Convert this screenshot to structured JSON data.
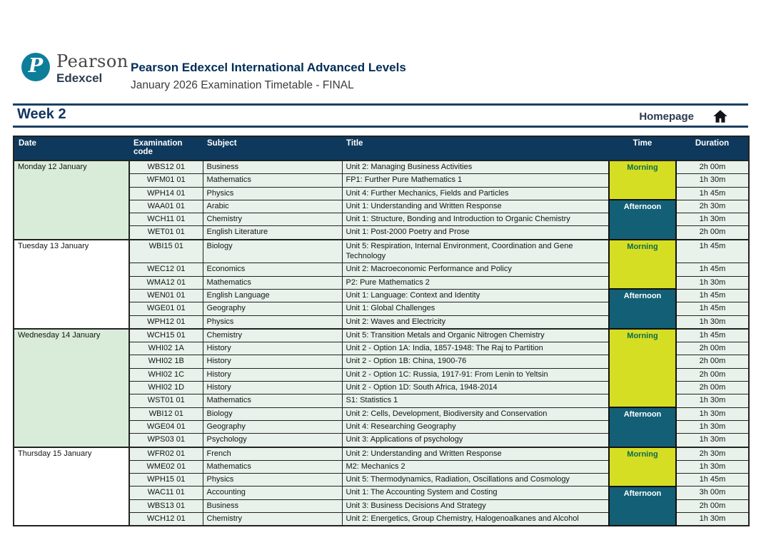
{
  "logo": {
    "circle_letter": "P",
    "brand": "Pearson",
    "sub_brand": "Edexcel"
  },
  "header": {
    "title": "Pearson Edexcel International Advanced Levels",
    "subtitle": "January 2026 Examination Timetable - FINAL"
  },
  "week_label": "Week 2",
  "homepage_label": "Homepage",
  "colors": {
    "header_navy": "#0f395c",
    "rule_navy": "#1c4061",
    "pearson_teal": "#0d7e9a",
    "morning_bg": "#d6de23",
    "morning_text": "#0c6b51",
    "afternoon_bg": "#135f76",
    "afternoon_text": "#ffffff",
    "row_bg": "#e8f2ea",
    "date_shaded_bg": "#d9ecd9"
  },
  "table": {
    "columns": [
      "Date",
      "Examination code",
      "Subject",
      "Title",
      "Time",
      "Duration"
    ],
    "days": [
      {
        "date": "Monday 12 January",
        "date_shaded": true,
        "sessions": [
          {
            "time": "Morning",
            "exams": [
              {
                "code": "WBS12 01",
                "subject": "Business",
                "title": "Unit 2: Managing Business Activities",
                "duration": "2h 00m"
              },
              {
                "code": "WFM01 01",
                "subject": "Mathematics",
                "title": "FP1: Further Pure Mathematics 1",
                "duration": "1h 30m"
              },
              {
                "code": "WPH14 01",
                "subject": "Physics",
                "title": "Unit 4: Further Mechanics, Fields and Particles",
                "duration": "1h 45m"
              }
            ]
          },
          {
            "time": "Afternoon",
            "exams": [
              {
                "code": "WAA01 01",
                "subject": "Arabic",
                "title": "Unit 1: Understanding and Written Response",
                "duration": "2h 30m"
              },
              {
                "code": "WCH11 01",
                "subject": "Chemistry",
                "title": "Unit 1: Structure, Bonding and Introduction to Organic Chemistry",
                "duration": "1h 30m"
              },
              {
                "code": "WET01 01",
                "subject": "English Literature",
                "title": "Unit 1: Post-2000 Poetry and Prose",
                "duration": "2h 00m"
              }
            ]
          }
        ]
      },
      {
        "date": "Tuesday 13 January",
        "date_shaded": false,
        "sessions": [
          {
            "time": "Morning",
            "exams": [
              {
                "code": "WBI15 01",
                "subject": "Biology",
                "title": "Unit 5: Respiration, Internal Environment, Coordination and Gene Technology",
                "duration": "1h 45m"
              },
              {
                "code": "WEC12 01",
                "subject": "Economics",
                "title": "Unit 2: Macroeconomic Performance and Policy",
                "duration": "1h 45m"
              },
              {
                "code": "WMA12 01",
                "subject": "Mathematics",
                "title": "P2: Pure Mathematics 2",
                "duration": "1h 30m"
              }
            ]
          },
          {
            "time": "Afternoon",
            "exams": [
              {
                "code": "WEN01 01",
                "subject": "English Language",
                "title": "Unit 1: Language: Context and Identity",
                "duration": "1h 45m"
              },
              {
                "code": "WGE01 01",
                "subject": "Geography",
                "title": "Unit 1: Global Challenges",
                "duration": "1h 45m"
              },
              {
                "code": "WPH12 01",
                "subject": "Physics",
                "title": "Unit 2: Waves and Electricity",
                "duration": "1h 30m"
              }
            ]
          }
        ]
      },
      {
        "date": "Wednesday 14 January",
        "date_shaded": true,
        "sessions": [
          {
            "time": "Morning",
            "exams": [
              {
                "code": "WCH15 01",
                "subject": "Chemistry",
                "title": "Unit 5: Transition Metals and Organic Nitrogen Chemistry",
                "duration": "1h 45m"
              },
              {
                "code": "WHI02 1A",
                "subject": "History",
                "title": "Unit 2 - Option 1A: India, 1857-1948: The Raj to Partition",
                "duration": "2h 00m"
              },
              {
                "code": "WHI02 1B",
                "subject": "History",
                "title": "Unit 2 - Option 1B: China, 1900-76",
                "duration": "2h 00m"
              },
              {
                "code": "WHI02 1C",
                "subject": "History",
                "title": "Unit 2 - Option 1C: Russia, 1917-91: From Lenin to Yeltsin",
                "duration": "2h 00m"
              },
              {
                "code": "WHI02 1D",
                "subject": "History",
                "title": "Unit 2 - Option 1D: South Africa, 1948-2014",
                "duration": "2h 00m"
              },
              {
                "code": "WST01 01",
                "subject": "Mathematics",
                "title": "S1: Statistics 1",
                "duration": "1h 30m"
              }
            ]
          },
          {
            "time": "Afternoon",
            "exams": [
              {
                "code": "WBI12 01",
                "subject": "Biology",
                "title": "Unit 2: Cells, Development, Biodiversity and Conservation",
                "duration": "1h 30m"
              },
              {
                "code": "WGE04 01",
                "subject": "Geography",
                "title": "Unit 4: Researching Geography",
                "duration": "1h 30m"
              },
              {
                "code": "WPS03 01",
                "subject": "Psychology",
                "title": "Unit 3: Applications of psychology",
                "duration": "1h 30m"
              }
            ]
          }
        ]
      },
      {
        "date": "Thursday 15 January",
        "date_shaded": false,
        "sessions": [
          {
            "time": "Morning",
            "exams": [
              {
                "code": "WFR02 01",
                "subject": "French",
                "title": "Unit 2: Understanding and Written Response",
                "duration": "2h 30m"
              },
              {
                "code": "WME02 01",
                "subject": "Mathematics",
                "title": "M2: Mechanics 2",
                "duration": "1h 30m"
              },
              {
                "code": "WPH15 01",
                "subject": "Physics",
                "title": "Unit 5: Thermodynamics, Radiation, Oscillations and Cosmology",
                "duration": "1h 45m"
              }
            ]
          },
          {
            "time": "Afternoon",
            "exams": [
              {
                "code": "WAC11 01",
                "subject": "Accounting",
                "title": "Unit 1: The Accounting System and Costing",
                "duration": "3h 00m"
              },
              {
                "code": "WBS13 01",
                "subject": "Business",
                "title": "Unit 3: Business Decisions And Strategy",
                "duration": "2h 00m"
              },
              {
                "code": "WCH12 01",
                "subject": "Chemistry",
                "title": "Unit 2: Energetics, Group Chemistry, Halogenoalkanes and Alcohol",
                "duration": "1h 30m"
              }
            ]
          }
        ]
      }
    ]
  }
}
